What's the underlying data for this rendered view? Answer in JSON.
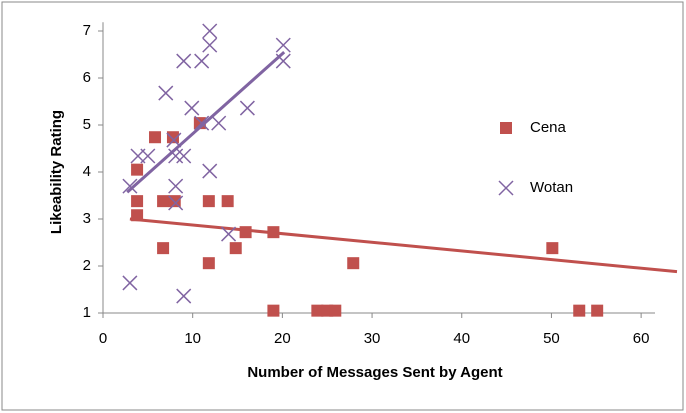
{
  "chart_data": {
    "type": "scatter",
    "x_label": "Number of Messages Sent by Agent",
    "y_label": "Likeability  Rating",
    "xlim": [
      0,
      64
    ],
    "ylim": [
      1,
      7.1
    ],
    "xticks": [
      0,
      10,
      20,
      30,
      40,
      50,
      60
    ],
    "yticks": [
      1,
      2,
      3,
      4,
      5,
      6,
      7
    ],
    "grid": false,
    "legend": "right",
    "series": [
      {
        "name": "Cena",
        "color": "#c0504d",
        "marker": "square",
        "x": [
          3.8,
          3.8,
          3.8,
          5.8,
          7.8,
          10.8,
          6.7,
          8.0,
          11.8,
          13.9,
          6.7,
          11.8,
          14.8,
          15.9,
          19.0,
          19.0,
          23.9,
          25.0,
          25.9,
          27.9,
          50.1,
          53.1,
          55.1
        ],
        "values": [
          4.05,
          3.38,
          3.08,
          4.74,
          4.74,
          5.04,
          3.38,
          3.38,
          3.38,
          3.38,
          2.38,
          2.06,
          2.38,
          2.72,
          2.72,
          1.05,
          1.05,
          1.05,
          1.05,
          2.06,
          2.38,
          1.05,
          1.05
        ],
        "trendline": {
          "x": [
            3.0,
            64
          ],
          "y": [
            3.0,
            1.88
          ]
        }
      },
      {
        "name": "Wotan",
        "color": "#8064a2",
        "marker": "x",
        "x": [
          3.0,
          3.0,
          3.9,
          5.0,
          7.0,
          7.9,
          8.1,
          9.0,
          8.1,
          8.1,
          9.0,
          9.0,
          9.9,
          11.0,
          11.0,
          11.9,
          11.9,
          11.9,
          12.9,
          14.0,
          16.1,
          20.1,
          20.1
        ],
        "values": [
          1.64,
          3.7,
          4.34,
          4.34,
          5.68,
          4.68,
          4.34,
          4.34,
          3.7,
          3.34,
          6.36,
          1.36,
          5.36,
          6.36,
          5.04,
          7.0,
          6.7,
          4.02,
          5.04,
          2.68,
          5.36,
          6.7,
          6.36
        ],
        "trendline": {
          "x": [
            2.7,
            20.2
          ],
          "y": [
            3.57,
            6.55
          ]
        }
      }
    ]
  }
}
